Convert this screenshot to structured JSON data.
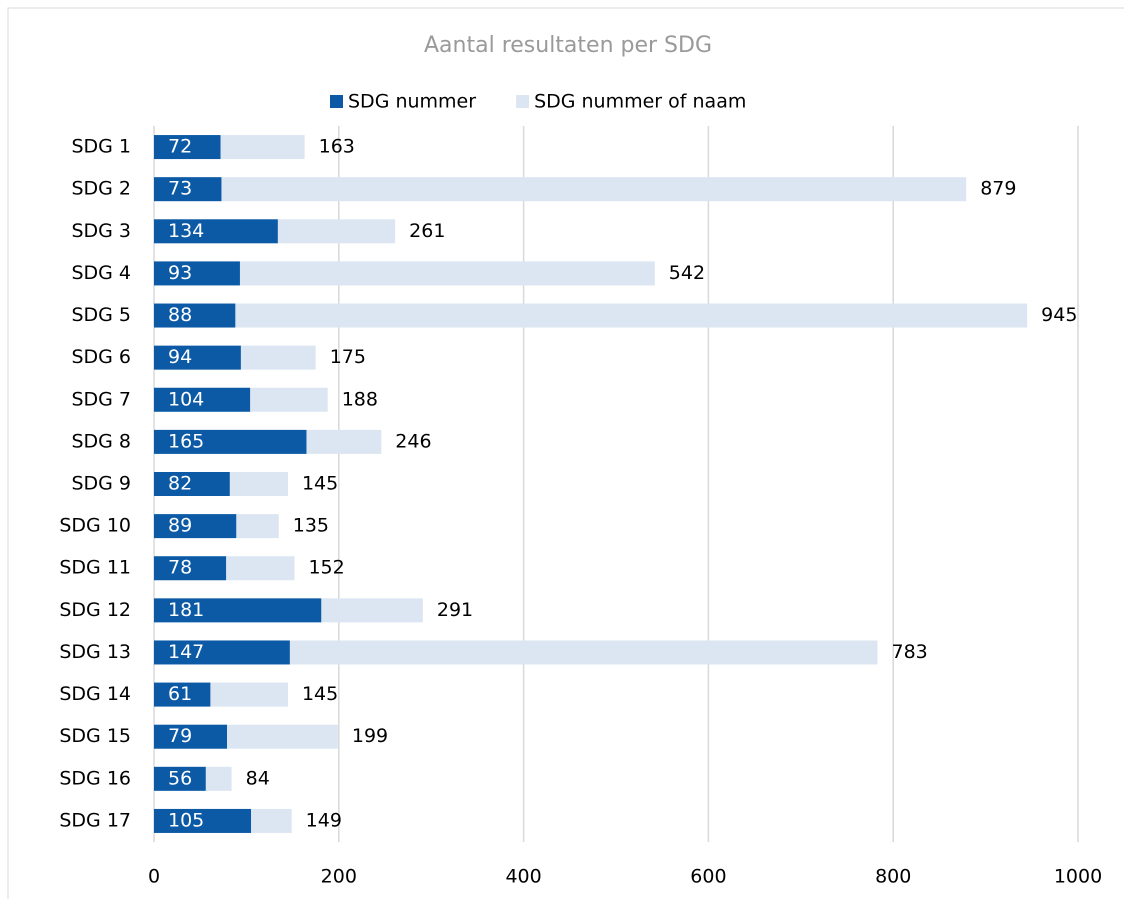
{
  "chart_data": {
    "type": "bar",
    "orientation": "horizontal",
    "title": "Aantal resultaten per SDG",
    "categories": [
      "SDG 1",
      "SDG 2",
      "SDG 3",
      "SDG 4",
      "SDG 5",
      "SDG 6",
      "SDG 7",
      "SDG 8",
      "SDG 9",
      "SDG 10",
      "SDG 11",
      "SDG 12",
      "SDG 13",
      "SDG 14",
      "SDG 15",
      "SDG 16",
      "SDG 17"
    ],
    "series": [
      {
        "name": "SDG nummer",
        "color": "#0c5aa6",
        "values": [
          72,
          73,
          134,
          93,
          88,
          94,
          104,
          165,
          82,
          89,
          78,
          181,
          147,
          61,
          79,
          56,
          105
        ]
      },
      {
        "name": "SDG nummer of naam",
        "color": "#dce6f2",
        "values": [
          163,
          879,
          261,
          542,
          945,
          175,
          188,
          246,
          145,
          135,
          152,
          291,
          783,
          145,
          199,
          84,
          149
        ]
      }
    ],
    "xlim": [
      0,
      1000
    ],
    "xticks": [
      0,
      200,
      400,
      600,
      800,
      1000
    ],
    "grid": true,
    "legend": "top"
  }
}
